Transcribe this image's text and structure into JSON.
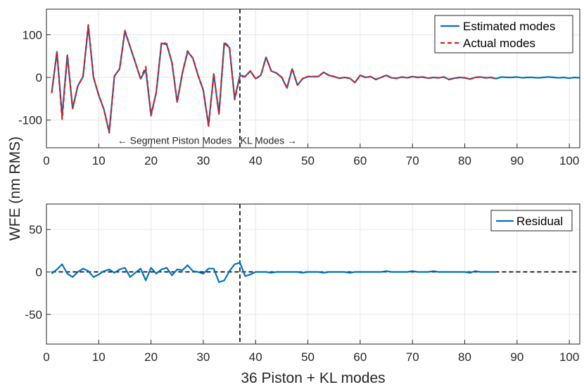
{
  "chart_data": [
    {
      "type": "line",
      "panel": "top",
      "xlim": [
        0,
        102
      ],
      "ylim": [
        -165,
        160
      ],
      "xticks": [
        0,
        10,
        20,
        30,
        40,
        50,
        60,
        70,
        80,
        90,
        100
      ],
      "yticks": [
        -100,
        0,
        100
      ],
      "xtick_labels": [
        "0",
        "10",
        "20",
        "30",
        "40",
        "50",
        "60",
        "70",
        "80",
        "90",
        "100"
      ],
      "ytick_labels": [
        "-100",
        "0",
        "100"
      ],
      "grid": true,
      "vline_x": 37,
      "annotations": [
        {
          "text": "← Segment Piston Modes",
          "x": 24.5,
          "y": -148
        },
        {
          "text": "KL Modes →",
          "x": 42.5,
          "y": -148
        }
      ],
      "legend_position": "top-right",
      "series": [
        {
          "name": "Estimated modes",
          "color": "#0072BD",
          "style": "solid",
          "x": [
            1,
            2,
            3,
            4,
            5,
            6,
            7,
            8,
            9,
            10,
            11,
            12,
            13,
            14,
            15,
            16,
            17,
            18,
            19,
            20,
            21,
            22,
            23,
            24,
            25,
            26,
            27,
            28,
            29,
            30,
            31,
            32,
            33,
            34,
            35,
            36,
            37,
            38,
            39,
            40,
            41,
            42,
            43,
            44,
            45,
            46,
            47,
            48,
            49,
            50,
            51,
            52,
            53,
            54,
            55,
            56,
            57,
            58,
            59,
            60,
            61,
            62,
            63,
            64,
            65,
            66,
            67,
            68,
            69,
            70,
            71,
            72,
            73,
            74,
            75,
            76,
            77,
            78,
            79,
            80,
            81,
            82,
            83,
            84,
            85,
            86,
            87,
            88,
            89,
            90,
            91,
            92,
            93,
            94,
            95,
            96,
            97,
            98,
            99,
            100,
            101,
            102
          ],
          "values": [
            -37,
            60,
            -90,
            52,
            -73,
            -20,
            2,
            120,
            0,
            -42,
            -75,
            -128,
            3,
            20,
            108,
            72,
            35,
            -3,
            18,
            -88,
            -35,
            80,
            77,
            35,
            -58,
            10,
            60,
            45,
            5,
            -30,
            -112,
            8,
            -86,
            80,
            70,
            -50,
            5,
            2,
            15,
            -3,
            5,
            47,
            15,
            10,
            0,
            -25,
            20,
            -18,
            -3,
            2,
            2,
            2,
            12,
            5,
            2,
            -2,
            0,
            -2,
            -12,
            5,
            0,
            2,
            -5,
            0,
            5,
            -1,
            -2,
            1,
            -1,
            2,
            0,
            1,
            -2,
            0,
            -1,
            1,
            -5,
            -2,
            0,
            -1,
            -4,
            0,
            1,
            -1,
            0,
            -3,
            1,
            0,
            0,
            1,
            -1,
            0,
            0,
            -1,
            0,
            1,
            0,
            -1,
            0,
            -2,
            0,
            -1
          ]
        },
        {
          "name": "Actual modes",
          "color": "#E41A1C",
          "style": "dashed",
          "x": [
            1,
            2,
            3,
            4,
            5,
            6,
            7,
            8,
            9,
            10,
            11,
            12,
            13,
            14,
            15,
            16,
            17,
            18,
            19,
            20,
            21,
            22,
            23,
            24,
            25,
            26,
            27,
            28,
            29,
            30,
            31,
            32,
            33,
            34,
            35,
            36,
            37,
            38,
            39,
            40,
            41,
            42,
            43,
            44,
            45,
            46,
            47,
            48,
            49,
            50,
            51,
            52,
            53,
            54,
            55,
            56,
            57,
            58,
            59,
            60,
            61,
            62,
            63,
            64,
            65,
            66,
            67,
            68,
            69,
            70,
            71,
            72,
            73,
            74,
            75,
            76,
            77,
            78,
            79,
            80,
            81,
            82,
            83,
            84,
            85,
            86
          ],
          "values": [
            -37,
            60,
            -98,
            52,
            -73,
            -20,
            2,
            123,
            0,
            -42,
            -75,
            -130,
            3,
            20,
            110,
            72,
            35,
            -3,
            25,
            -90,
            -35,
            82,
            79,
            35,
            -58,
            10,
            62,
            45,
            5,
            -30,
            -114,
            8,
            -86,
            82,
            72,
            -52,
            2,
            2,
            15,
            -3,
            5,
            47,
            15,
            10,
            0,
            -25,
            21,
            -18,
            -3,
            2,
            2,
            2,
            12,
            5,
            2,
            -2,
            0,
            -2,
            -12,
            5,
            0,
            2,
            -5,
            0,
            5,
            -1,
            -2,
            1,
            -1,
            2,
            0,
            1,
            -2,
            0,
            -1,
            1,
            -5,
            -2,
            0,
            -1,
            -4,
            0,
            1,
            -1,
            0,
            -3
          ]
        }
      ]
    },
    {
      "type": "line",
      "panel": "bottom",
      "xlim": [
        0,
        102
      ],
      "ylim": [
        -85,
        80
      ],
      "xticks": [
        0,
        10,
        20,
        30,
        40,
        50,
        60,
        70,
        80,
        90,
        100
      ],
      "yticks": [
        -50,
        0,
        50
      ],
      "xtick_labels": [
        "0",
        "10",
        "20",
        "30",
        "40",
        "50",
        "60",
        "70",
        "80",
        "90",
        "100"
      ],
      "ytick_labels": [
        "-50",
        "0",
        "50"
      ],
      "grid": true,
      "vline_x": 37,
      "zero_line": {
        "from": 1,
        "to": 102
      },
      "legend_position": "top-right",
      "series": [
        {
          "name": "Residual",
          "color": "#0072BD",
          "style": "solid",
          "x": [
            1,
            2,
            3,
            4,
            5,
            6,
            7,
            8,
            9,
            10,
            11,
            12,
            13,
            14,
            15,
            16,
            17,
            18,
            19,
            20,
            21,
            22,
            23,
            24,
            25,
            26,
            27,
            28,
            29,
            30,
            31,
            32,
            33,
            34,
            35,
            36,
            37,
            38,
            39,
            40,
            41,
            42,
            43,
            44,
            45,
            46,
            47,
            48,
            49,
            50,
            51,
            52,
            53,
            54,
            55,
            56,
            57,
            58,
            59,
            60,
            61,
            62,
            63,
            64,
            65,
            66,
            67,
            68,
            69,
            70,
            71,
            72,
            73,
            74,
            75,
            76,
            77,
            78,
            79,
            80,
            81,
            82,
            83,
            84,
            85,
            86
          ],
          "values": [
            -2,
            3,
            9,
            -2,
            -6,
            0,
            4,
            1,
            -6,
            -3,
            1,
            3,
            -1,
            3,
            5,
            -6,
            -1,
            4,
            -10,
            5,
            -2,
            3,
            5,
            -4,
            3,
            2,
            8,
            1,
            0,
            -2,
            4,
            4,
            -12,
            -10,
            1,
            9,
            11,
            -5,
            -3,
            0,
            0,
            0,
            -1,
            0,
            0,
            0,
            0,
            0,
            -1,
            0,
            0,
            0,
            -1,
            0,
            0,
            0,
            0,
            -1,
            0,
            0,
            0,
            0,
            0,
            0,
            1,
            0,
            0,
            0,
            0,
            1,
            0,
            0,
            0,
            1,
            0,
            0,
            0,
            0,
            0,
            0,
            -1,
            1,
            0,
            0,
            0,
            0
          ]
        }
      ]
    }
  ],
  "ylabel_shared": "WFE (nm RMS)",
  "xlabel_shared": "36 Piston + KL modes"
}
